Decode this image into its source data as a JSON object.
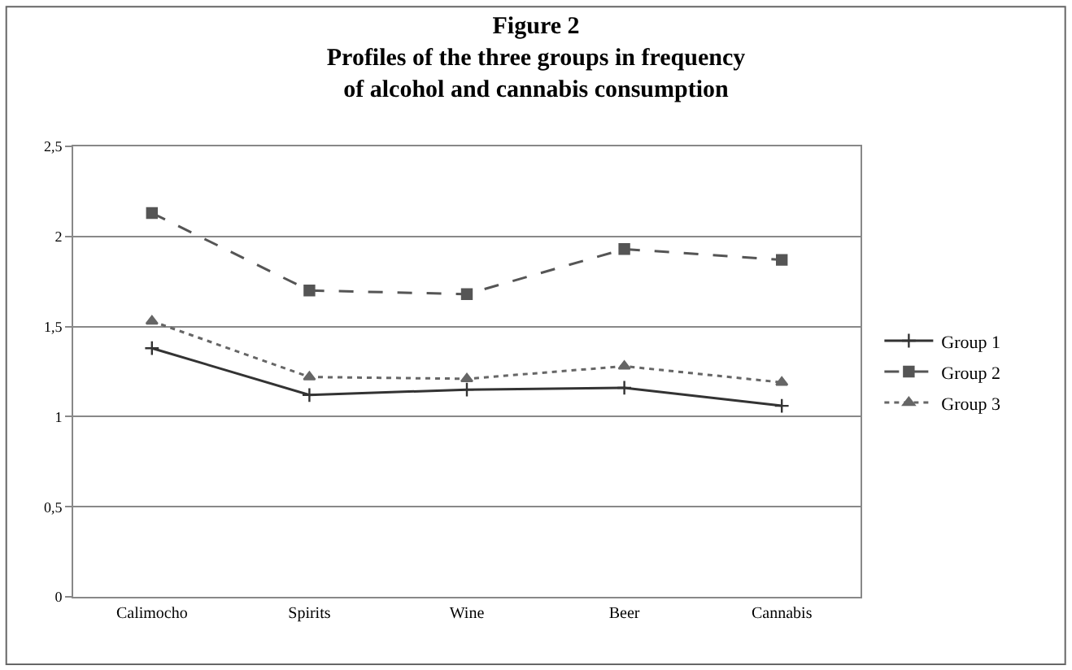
{
  "chart_data": {
    "type": "line",
    "title": "Figure 2\nProfiles of the three groups in frequency\nof alcohol and cannabis consumption",
    "categories": [
      "Calimocho",
      "Spirits",
      "Wine",
      "Beer",
      "Cannabis"
    ],
    "series": [
      {
        "name": "Group 1",
        "color": "#333333",
        "values": [
          1.38,
          1.12,
          1.15,
          1.16,
          1.06
        ],
        "line_style": "solid",
        "marker": "cross"
      },
      {
        "name": "Group 2",
        "color": "#555555",
        "values": [
          2.13,
          1.7,
          1.68,
          1.93,
          1.87
        ],
        "line_style": "dashed",
        "marker": "square"
      },
      {
        "name": "Group 3",
        "color": "#666666",
        "values": [
          1.53,
          1.22,
          1.21,
          1.28,
          1.19
        ],
        "line_style": "dotted",
        "marker": "triangle"
      }
    ],
    "ylim": [
      0,
      2.5
    ],
    "yticks": [
      {
        "value": 0,
        "label": "0"
      },
      {
        "value": 0.5,
        "label": "0,5"
      },
      {
        "value": 1,
        "label": "1"
      },
      {
        "value": 1.5,
        "label": "1,5"
      },
      {
        "value": 2,
        "label": "2"
      },
      {
        "value": 2.5,
        "label": "2,5"
      }
    ],
    "grid": "y",
    "legend": "right"
  }
}
